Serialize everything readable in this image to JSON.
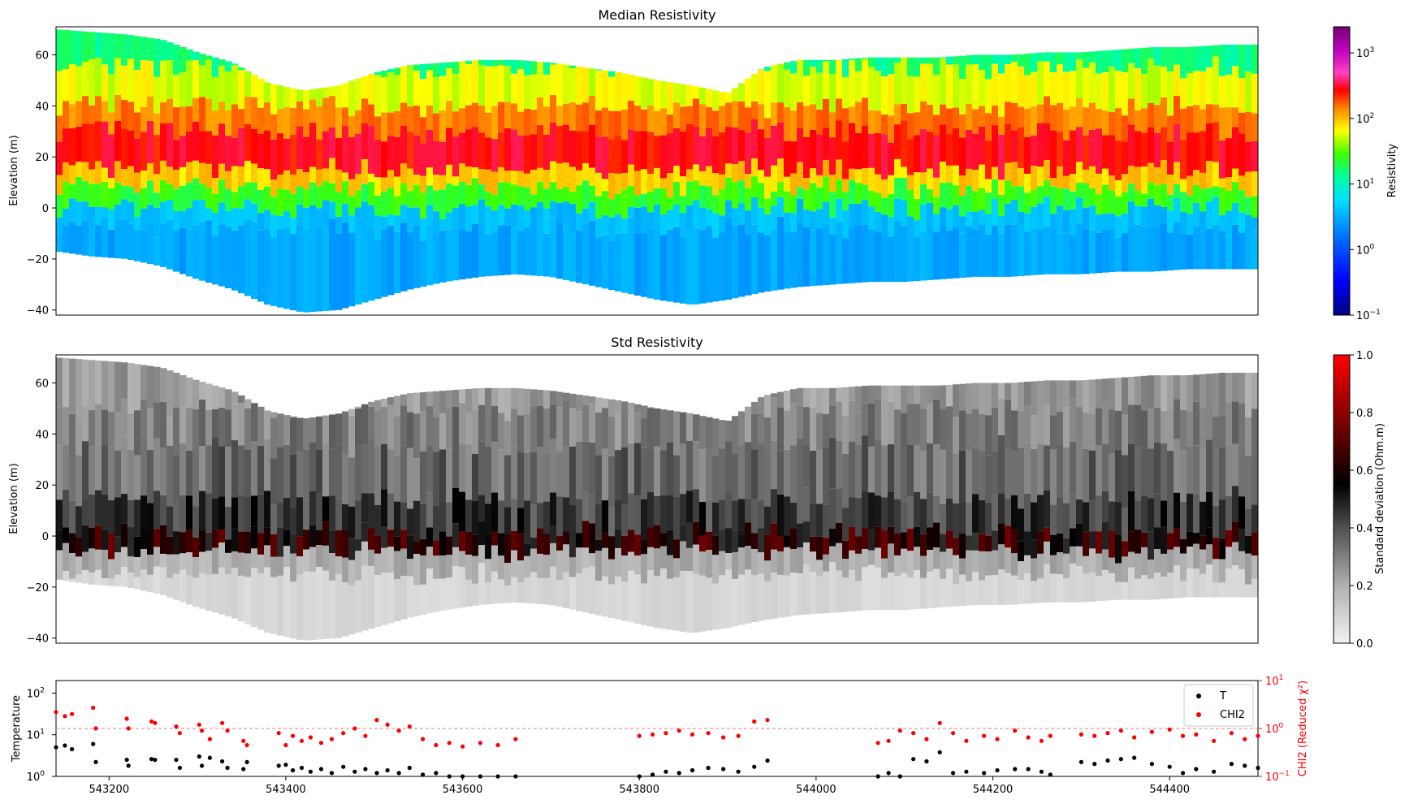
{
  "chart_data": [
    {
      "type": "heatmap",
      "title": "Median Resistivity",
      "ylabel": "Elevation (m)",
      "xlim": [
        543140,
        544500
      ],
      "ylim": [
        -42,
        71
      ],
      "yticks": [
        -40,
        -20,
        0,
        20,
        40,
        60
      ],
      "xticks_shown": false,
      "colorbar": {
        "label": "Resistivity",
        "scale": "log",
        "range": [
          0.1,
          2500
        ],
        "ticks": [
          {
            "base": "10",
            "exp": "−1",
            "value": 0.1
          },
          {
            "base": "10",
            "exp": "0",
            "value": 1
          },
          {
            "base": "10",
            "exp": "1",
            "value": 10
          },
          {
            "base": "10",
            "exp": "2",
            "value": 100
          },
          {
            "base": "10",
            "exp": "3",
            "value": 1000
          }
        ]
      },
      "profile": {
        "x": [
          543140,
          543180,
          543220,
          543260,
          543300,
          543340,
          543380,
          543420,
          543460,
          543500,
          543540,
          543580,
          543620,
          543660,
          543700,
          543740,
          543780,
          543820,
          543860,
          543900,
          543940,
          543980,
          544020,
          544060,
          544100,
          544140,
          544180,
          544220,
          544260,
          544300,
          544340,
          544380,
          544420,
          544460,
          544500
        ],
        "top": [
          70,
          69,
          68,
          66,
          61,
          57,
          49,
          46,
          48,
          53,
          56,
          57,
          58,
          58,
          57,
          55,
          53,
          50,
          48,
          45,
          55,
          58,
          58,
          59,
          59,
          59,
          60,
          60,
          61,
          61,
          62,
          63,
          63,
          64,
          64
        ],
        "bottom": [
          -17,
          -19,
          -20,
          -23,
          -28,
          -32,
          -38,
          -41,
          -40,
          -36,
          -32,
          -29,
          -27,
          -26,
          -27,
          -30,
          -33,
          -36,
          -38,
          -36,
          -33,
          -31,
          -30,
          -29,
          -29,
          -28,
          -27,
          -27,
          -26,
          -26,
          -25,
          -25,
          -24,
          -24,
          -24
        ],
        "layer_boundaries_elev": [
          55,
          40,
          30,
          15,
          8,
          0,
          -8
        ],
        "layer_resistivity": [
          15,
          60,
          150,
          280,
          90,
          25,
          4,
          3
        ]
      }
    },
    {
      "type": "heatmap",
      "title": "Std Resistivity",
      "ylabel": "Elevation (m)",
      "xlim": [
        543140,
        544500
      ],
      "ylim": [
        -42,
        71
      ],
      "yticks": [
        -40,
        -20,
        0,
        20,
        40,
        60
      ],
      "xticks_shown": false,
      "colorbar": {
        "label": "Standard deviation (Ohm.m)",
        "scale": "linear",
        "range": [
          0.0,
          1.0
        ],
        "ticks": [
          "0.0",
          "0.2",
          "0.4",
          "0.6",
          "0.8",
          "1.0"
        ]
      },
      "layer_boundaries_elev": [
        50,
        35,
        15,
        2,
        -6,
        -15
      ],
      "layer_std": [
        0.25,
        0.3,
        0.35,
        0.45,
        0.6,
        0.2,
        0.08
      ]
    },
    {
      "type": "scatter",
      "ylabel": "Temperature",
      "y2label": "CHI2 (Reduced χ²)",
      "xlim": [
        543140,
        544500
      ],
      "xticks": [
        "543200",
        "543400",
        "543600",
        "543800",
        "544000",
        "544200",
        "544400"
      ],
      "y_scale": "log",
      "ylim": [
        1,
        200
      ],
      "yticks": [
        {
          "base": "10",
          "exp": "0",
          "value": 1
        },
        {
          "base": "10",
          "exp": "1",
          "value": 10
        },
        {
          "base": "10",
          "exp": "2",
          "value": 100
        }
      ],
      "y2_scale": "log",
      "y2lim": [
        0.1,
        10
      ],
      "y2ticks": [
        {
          "base": "10",
          "exp": "−1",
          "value": 0.1
        },
        {
          "base": "10",
          "exp": "0",
          "value": 1
        },
        {
          "base": "10",
          "exp": "1",
          "value": 10
        }
      ],
      "threshold_chi2": 1.0,
      "legend": {
        "placement": "top-right",
        "entries": [
          "T",
          "CHI2"
        ]
      },
      "series": [
        {
          "name": "T",
          "color": "#000000",
          "x": [
            543140,
            543150,
            543158,
            543182,
            543185,
            543220,
            543222,
            543248,
            543252,
            543276,
            543280,
            543302,
            543305,
            543314,
            543328,
            543334,
            543352,
            543356,
            543392,
            543400,
            543408,
            543418,
            543428,
            543440,
            543452,
            543465,
            543478,
            543490,
            543503,
            543515,
            543528,
            543540,
            543555,
            543570,
            543585,
            543600,
            543620,
            543640,
            543660,
            543800,
            543815,
            543830,
            543845,
            543860,
            543878,
            543895,
            543912,
            543930,
            543945,
            544070,
            544082,
            544095,
            544110,
            544125,
            544140,
            544155,
            544170,
            544190,
            544205,
            544225,
            544240,
            544255,
            544265,
            544300,
            544315,
            544330,
            544345,
            544360,
            544380,
            544400,
            544415,
            544430,
            544450,
            544470,
            544485,
            544500
          ],
          "y": [
            5,
            5.5,
            4.5,
            6,
            2.2,
            2.5,
            1.8,
            2.6,
            2.5,
            2.5,
            1.6,
            3,
            1.8,
            2.8,
            2.3,
            1.6,
            1.5,
            2.2,
            1.8,
            1.9,
            1.4,
            1.6,
            1.3,
            1.5,
            1.2,
            1.7,
            1.3,
            1.5,
            1.2,
            1.4,
            1.2,
            1.6,
            1.1,
            1.2,
            1.0,
            1.0,
            1.0,
            1.0,
            1.0,
            1.0,
            1.1,
            1.3,
            1.2,
            1.4,
            1.6,
            1.5,
            1.3,
            1.7,
            2.4,
            1.0,
            1.2,
            1.0,
            2.6,
            2.3,
            3.8,
            1.2,
            1.3,
            1.2,
            1.4,
            1.5,
            1.5,
            1.3,
            1.1,
            2.2,
            2.0,
            2.4,
            2.6,
            2.8,
            2.0,
            1.7,
            1.2,
            1.5,
            1.3,
            2.0,
            1.8,
            1.6
          ]
        },
        {
          "name": "CHI2",
          "color": "#ff0000",
          "x": [
            543140,
            543150,
            543158,
            543182,
            543185,
            543220,
            543222,
            543248,
            543252,
            543276,
            543280,
            543302,
            543305,
            543314,
            543328,
            543334,
            543352,
            543356,
            543392,
            543400,
            543408,
            543418,
            543428,
            543440,
            543452,
            543465,
            543478,
            543490,
            543503,
            543515,
            543528,
            543540,
            543555,
            543570,
            543585,
            543600,
            543620,
            543640,
            543660,
            543800,
            543815,
            543830,
            543845,
            543860,
            543878,
            543895,
            543912,
            543930,
            543945,
            544070,
            544082,
            544095,
            544110,
            544125,
            544140,
            544155,
            544170,
            544190,
            544205,
            544225,
            544240,
            544255,
            544265,
            544300,
            544315,
            544330,
            544345,
            544360,
            544380,
            544400,
            544415,
            544430,
            544450,
            544470,
            544485,
            544500
          ],
          "y": [
            2.2,
            1.8,
            2.0,
            2.7,
            1.0,
            1.6,
            1.0,
            1.4,
            1.3,
            1.1,
            0.8,
            1.2,
            0.9,
            0.6,
            1.3,
            0.9,
            0.55,
            0.45,
            0.8,
            0.45,
            0.7,
            0.55,
            0.65,
            0.5,
            0.6,
            0.8,
            1.0,
            0.7,
            1.5,
            1.2,
            0.9,
            1.1,
            0.6,
            0.45,
            0.5,
            0.42,
            0.5,
            0.45,
            0.6,
            0.7,
            0.75,
            0.8,
            0.9,
            0.75,
            0.8,
            0.65,
            0.7,
            1.4,
            1.5,
            0.5,
            0.55,
            0.9,
            0.8,
            0.6,
            1.3,
            0.8,
            0.55,
            0.7,
            0.6,
            0.9,
            0.65,
            0.55,
            0.7,
            0.75,
            0.7,
            0.8,
            0.9,
            0.65,
            0.85,
            0.95,
            0.7,
            0.75,
            0.55,
            0.8,
            0.6,
            0.7
          ]
        }
      ]
    }
  ]
}
